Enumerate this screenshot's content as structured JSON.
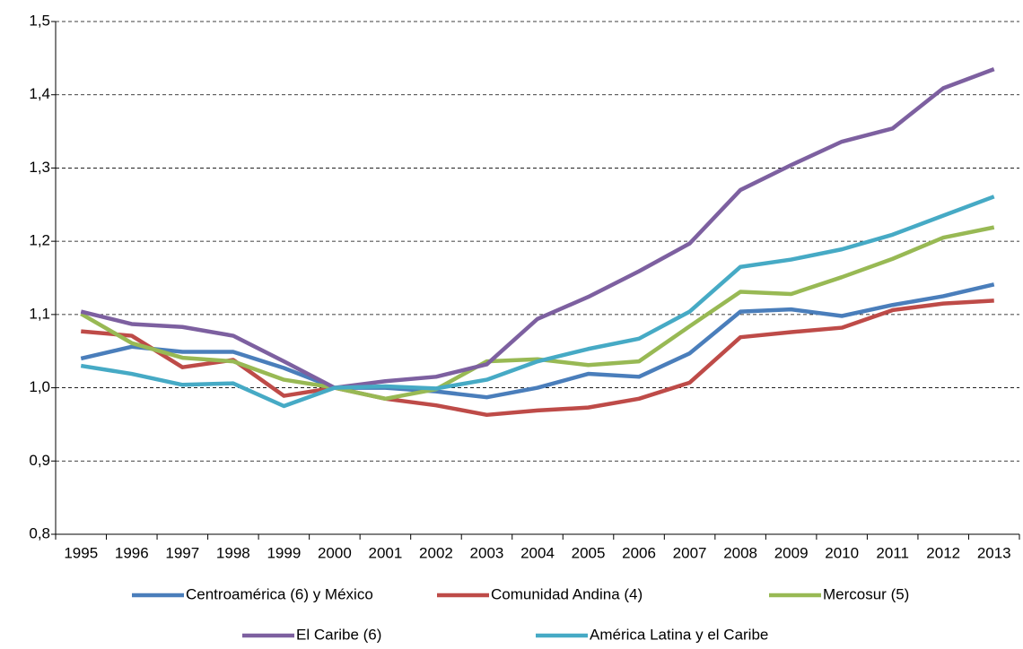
{
  "chart_data": {
    "type": "line",
    "categories": [
      "1995",
      "1996",
      "1997",
      "1998",
      "1999",
      "2000",
      "2001",
      "2002",
      "2003",
      "2004",
      "2005",
      "2006",
      "2007",
      "2008",
      "2009",
      "2010",
      "2011",
      "2012",
      "2013"
    ],
    "series": [
      {
        "name": "Centroamérica (6) y México",
        "color": "#4a7ebb",
        "values": [
          1.04,
          1.056,
          1.049,
          1.049,
          1.027,
          1.0,
          1.0,
          0.995,
          0.987,
          1.0,
          1.019,
          1.015,
          1.047,
          1.104,
          1.107,
          1.098,
          1.113,
          1.125,
          1.141
        ]
      },
      {
        "name": "Comunidad Andina (4)",
        "color": "#be4b48",
        "values": [
          1.077,
          1.071,
          1.028,
          1.038,
          0.989,
          1.0,
          0.985,
          0.976,
          0.963,
          0.969,
          0.973,
          0.985,
          1.007,
          1.069,
          1.076,
          1.082,
          1.106,
          1.115,
          1.119
        ]
      },
      {
        "name": "Mercosur (5)",
        "color": "#98b954",
        "values": [
          1.101,
          1.061,
          1.041,
          1.036,
          1.011,
          1.0,
          0.985,
          0.998,
          1.036,
          1.039,
          1.031,
          1.036,
          1.084,
          1.131,
          1.128,
          1.151,
          1.176,
          1.205,
          1.219
        ]
      },
      {
        "name": "El Caribe (6)",
        "color": "#7d60a0",
        "values": [
          1.104,
          1.087,
          1.083,
          1.071,
          1.036,
          1.0,
          1.009,
          1.015,
          1.032,
          1.094,
          1.124,
          1.159,
          1.197,
          1.27,
          1.304,
          1.336,
          1.354,
          1.409,
          1.435
        ]
      },
      {
        "name": "América Latina y el Caribe",
        "color": "#46aac5",
        "values": [
          1.03,
          1.019,
          1.004,
          1.006,
          0.975,
          1.0,
          1.002,
          0.999,
          1.011,
          1.036,
          1.053,
          1.067,
          1.104,
          1.165,
          1.175,
          1.189,
          1.209,
          1.235,
          1.261
        ]
      }
    ],
    "ylim": [
      0.8,
      1.5
    ],
    "yticks": [
      {
        "value": 0.8,
        "label": "0,8"
      },
      {
        "value": 0.9,
        "label": "0,9"
      },
      {
        "value": 1.0,
        "label": "1,0"
      },
      {
        "value": 1.1,
        "label": "1,1"
      },
      {
        "value": 1.2,
        "label": "1,2"
      },
      {
        "value": 1.3,
        "label": "1,3"
      },
      {
        "value": 1.4,
        "label": "1,4"
      },
      {
        "value": 1.5,
        "label": "1,5"
      }
    ],
    "grid": true,
    "legend": "bottom"
  }
}
